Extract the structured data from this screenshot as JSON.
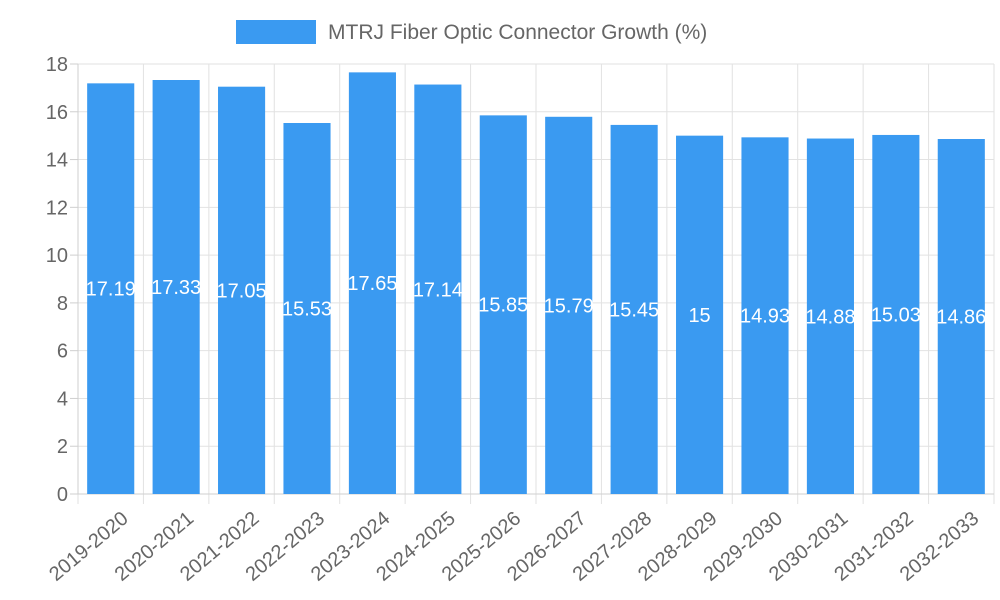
{
  "chart_data": {
    "type": "bar",
    "title": "",
    "xlabel": "",
    "ylabel": "",
    "ylim": [
      0,
      18
    ],
    "y_ticks": [
      0,
      2,
      4,
      6,
      8,
      10,
      12,
      14,
      16,
      18
    ],
    "grid": true,
    "legend_position": "top-center",
    "categories": [
      "2019-2020",
      "2020-2021",
      "2021-2022",
      "2022-2023",
      "2023-2024",
      "2024-2025",
      "2025-2026",
      "2026-2027",
      "2027-2028",
      "2028-2029",
      "2029-2030",
      "2030-2031",
      "2031-2032",
      "2032-2033"
    ],
    "series": [
      {
        "name": "MTRJ Fiber Optic Connector Growth (%)",
        "color": "#3a9af1",
        "values": [
          17.19,
          17.33,
          17.05,
          15.53,
          17.65,
          17.14,
          15.85,
          15.79,
          15.45,
          15,
          14.93,
          14.88,
          15.03,
          14.86
        ],
        "value_labels": [
          "17.19",
          "17.33",
          "17.05",
          "15.53",
          "17.65",
          "17.14",
          "15.85",
          "15.79",
          "15.45",
          "15",
          "14.93",
          "14.88",
          "15.03",
          "14.86"
        ]
      }
    ]
  }
}
